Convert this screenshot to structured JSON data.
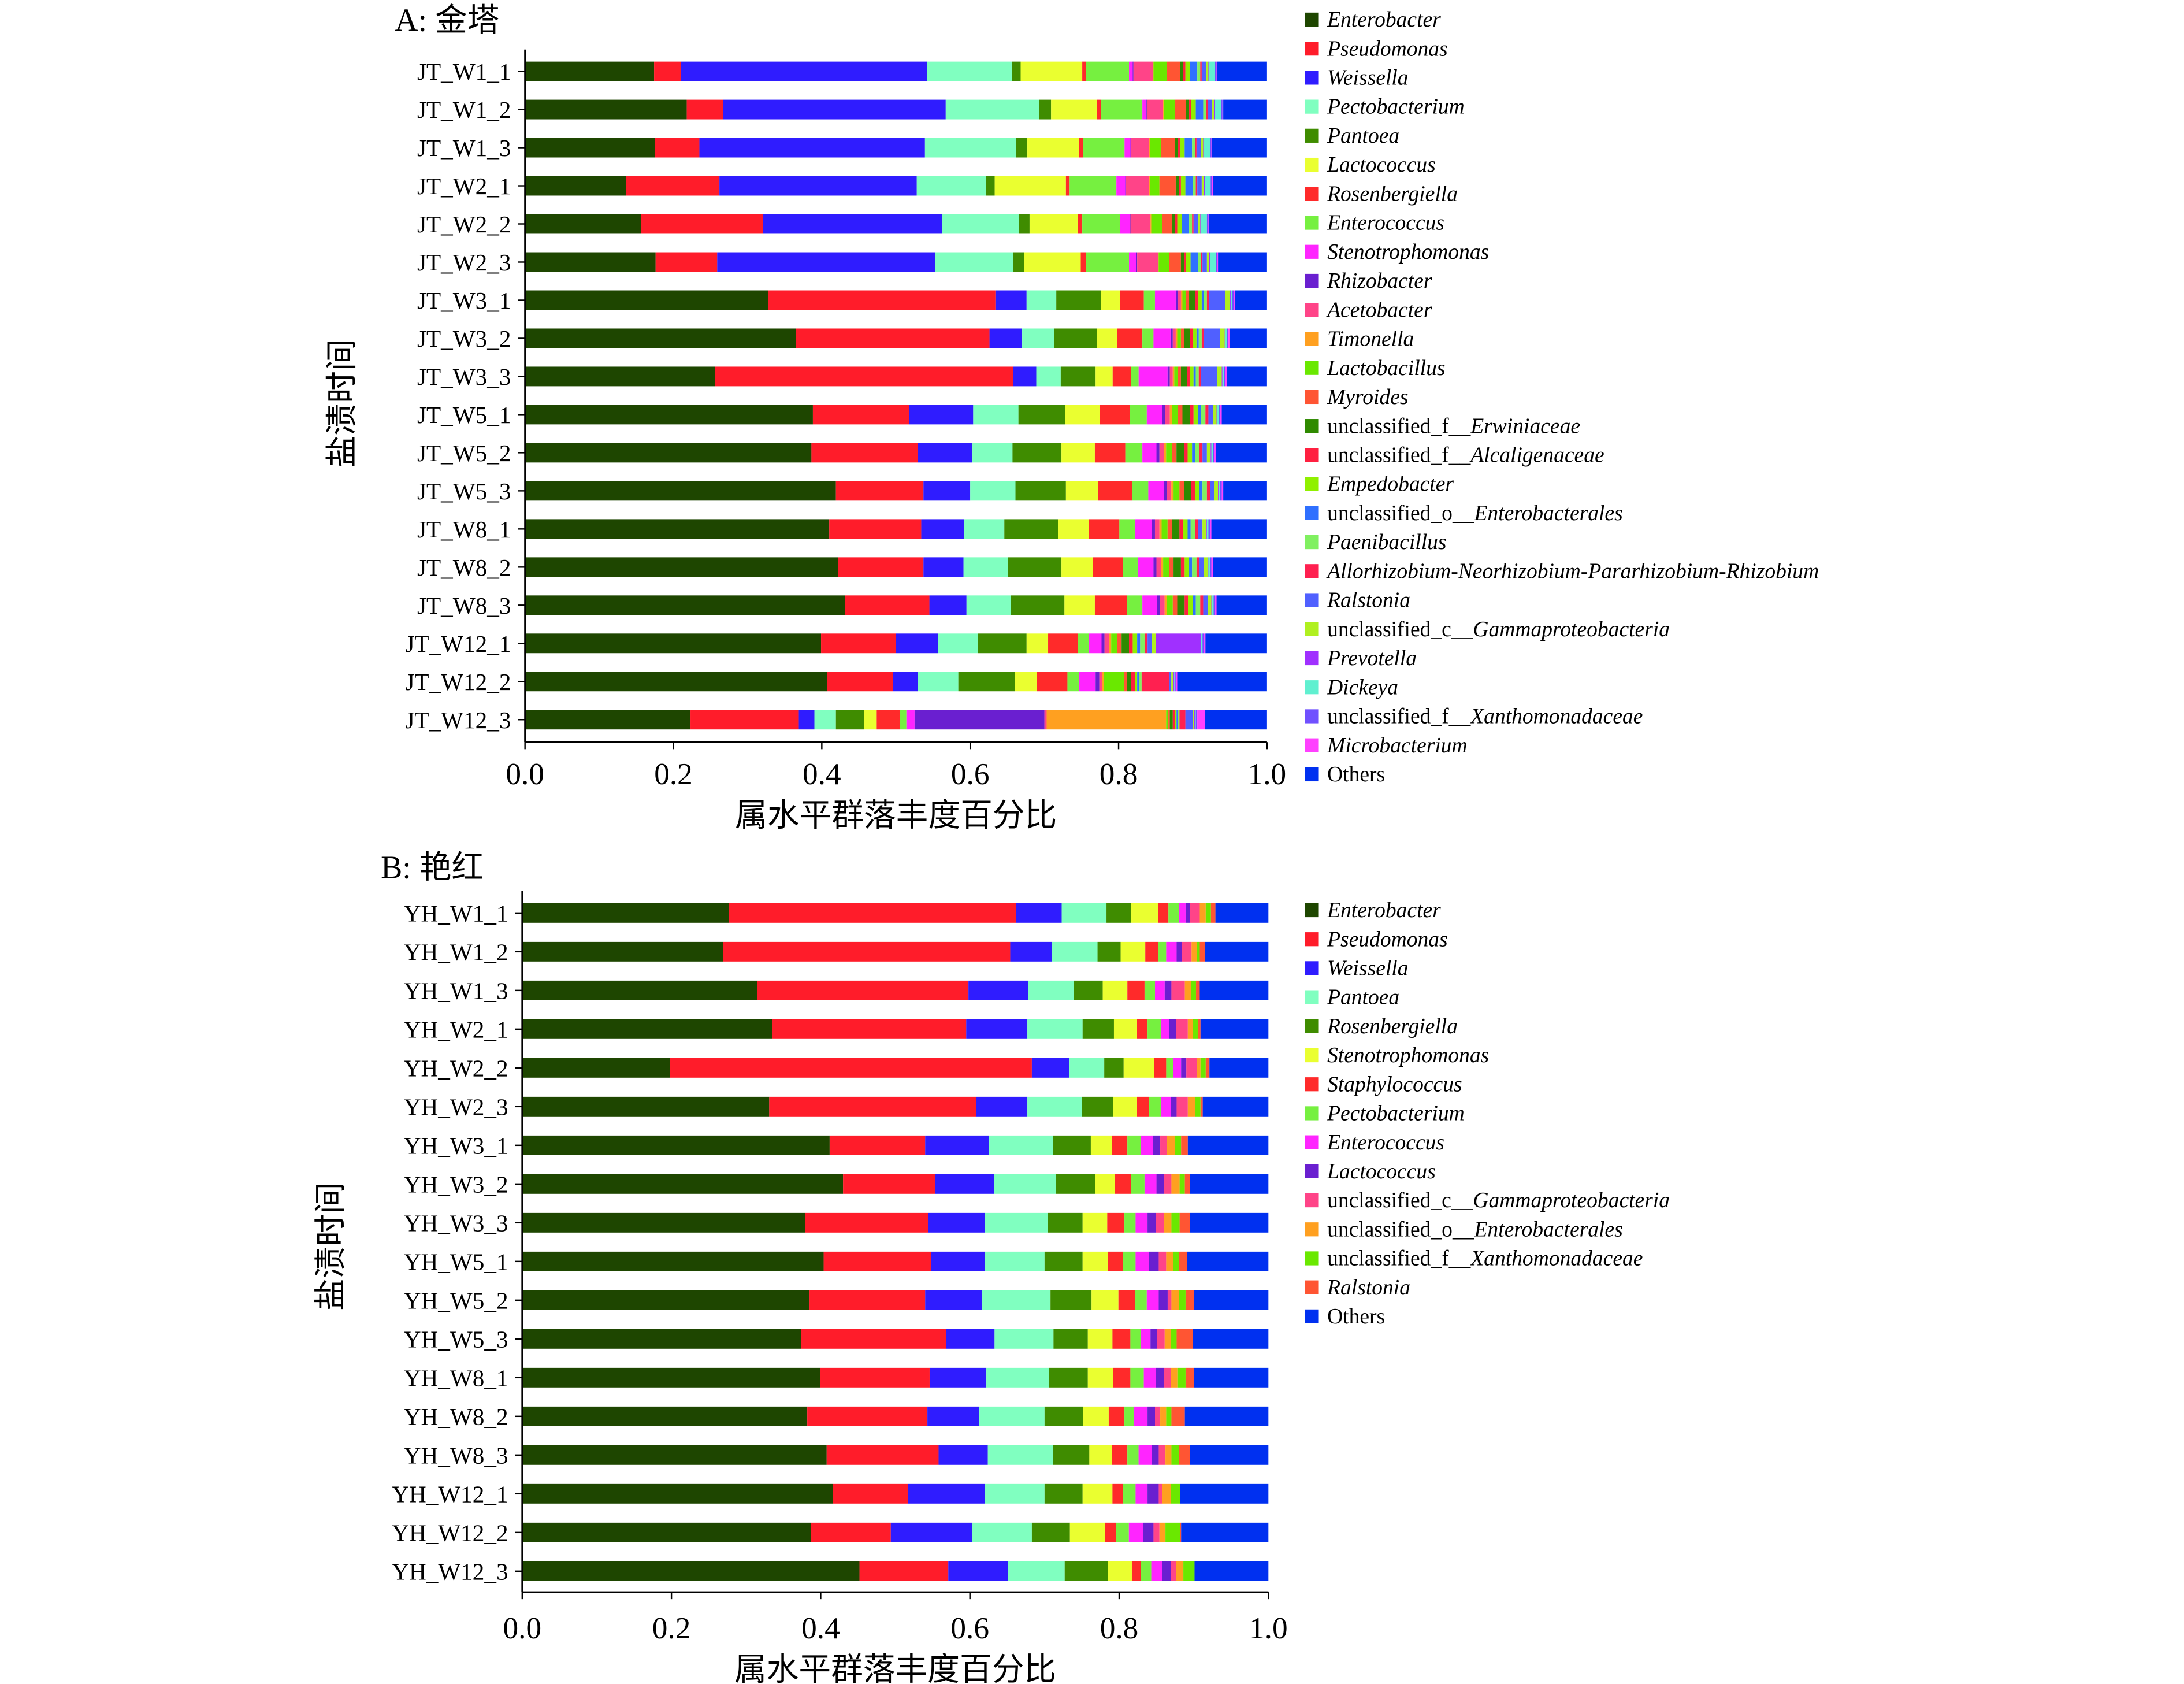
{
  "chart_data": [
    {
      "type": "bar",
      "orientation": "horizontal-stacked",
      "title": "A: 金塔",
      "xlabel": "属水平群落丰度百分比",
      "ylabel": "盐渍时间",
      "xlim": [
        0,
        1.0
      ],
      "xticks": [
        "0.0",
        "0.2",
        "0.4",
        "0.6",
        "0.8",
        "1.0"
      ],
      "legend_position": "right",
      "categories": [
        "JT_W1_1",
        "JT_W1_2",
        "JT_W1_3",
        "JT_W2_1",
        "JT_W2_2",
        "JT_W2_3",
        "JT_W3_1",
        "JT_W3_2",
        "JT_W3_3",
        "JT_W5_1",
        "JT_W5_2",
        "JT_W5_3",
        "JT_W8_1",
        "JT_W8_2",
        "JT_W8_3",
        "JT_W12_1",
        "JT_W12_2",
        "JT_W12_3"
      ],
      "series_names": [
        "Enterobacter",
        "Pseudomonas",
        "Weissella",
        "Pectobacterium",
        "Pantoea",
        "Lactococcus",
        "Rosenbergiella",
        "Enterococcus",
        "Stenotrophomonas",
        "Rhizobacter",
        "Acetobacter",
        "Timonella",
        "Lactobacillus",
        "Myroides",
        "unclassified_f__Erwiniaceae",
        "unclassified_f__Alcaligenaceae",
        "Empedobacter",
        "unclassified_o__Enterobacterales",
        "Paenibacillus",
        "Allorhizobium-Neorhizobium-Pararhizobium-Rhizobium",
        "Ralstonia",
        "unclassified_c__Gammaproteobacteria",
        "Prevotella",
        "Dickeya",
        "unclassified_f__Xanthomonadaceae",
        "Microbacterium",
        "Others"
      ],
      "colors": [
        "#1e4600",
        "#ff1c2a",
        "#2f1cff",
        "#80ffc0",
        "#3f8c00",
        "#eaff30",
        "#ff2a2a",
        "#76f040",
        "#ff25ff",
        "#6a1fd0",
        "#ff4488",
        "#ffa020",
        "#6ae800",
        "#ff5533",
        "#2f8a00",
        "#ff2040",
        "#90f000",
        "#2f70ff",
        "#80f060",
        "#ff2050",
        "#5060ff",
        "#b0f020",
        "#a030ff",
        "#60f0d0",
        "#7050ff",
        "#ff40ff",
        "#0030f0"
      ],
      "values": [
        [
          0.174,
          0.036,
          0.332,
          0.114,
          0.012,
          0.083,
          0.005,
          0.058,
          0.005,
          0.001,
          0.026,
          0.001,
          0.018,
          0.018,
          0.004,
          0.003,
          0.006,
          0.01,
          0.004,
          0.002,
          0.006,
          0.003,
          0.001,
          0.008,
          0.002,
          0.001,
          0.067
        ],
        [
          0.218,
          0.049,
          0.3,
          0.126,
          0.016,
          0.062,
          0.005,
          0.056,
          0.005,
          0.001,
          0.022,
          0.001,
          0.015,
          0.015,
          0.004,
          0.003,
          0.006,
          0.01,
          0.004,
          0.002,
          0.006,
          0.003,
          0.001,
          0.008,
          0.002,
          0.001,
          0.059
        ],
        [
          0.175,
          0.06,
          0.304,
          0.123,
          0.015,
          0.07,
          0.005,
          0.056,
          0.008,
          0.001,
          0.024,
          0.001,
          0.015,
          0.019,
          0.004,
          0.003,
          0.006,
          0.01,
          0.004,
          0.002,
          0.006,
          0.003,
          0.001,
          0.008,
          0.002,
          0.001,
          0.074
        ],
        [
          0.136,
          0.126,
          0.266,
          0.093,
          0.012,
          0.096,
          0.005,
          0.063,
          0.012,
          0.001,
          0.031,
          0.001,
          0.013,
          0.022,
          0.004,
          0.003,
          0.006,
          0.01,
          0.004,
          0.002,
          0.006,
          0.003,
          0.001,
          0.008,
          0.002,
          0.001,
          0.073
        ],
        [
          0.156,
          0.165,
          0.241,
          0.104,
          0.014,
          0.065,
          0.006,
          0.051,
          0.013,
          0.001,
          0.027,
          0.001,
          0.015,
          0.013,
          0.004,
          0.003,
          0.006,
          0.01,
          0.004,
          0.002,
          0.006,
          0.003,
          0.001,
          0.008,
          0.002,
          0.001,
          0.078
        ],
        [
          0.176,
          0.083,
          0.294,
          0.105,
          0.015,
          0.076,
          0.007,
          0.058,
          0.01,
          0.001,
          0.028,
          0.001,
          0.014,
          0.016,
          0.004,
          0.003,
          0.006,
          0.01,
          0.004,
          0.002,
          0.006,
          0.003,
          0.001,
          0.008,
          0.002,
          0.001,
          0.066
        ],
        [
          0.328,
          0.306,
          0.042,
          0.04,
          0.06,
          0.026,
          0.032,
          0.015,
          0.028,
          0.003,
          0.004,
          0.002,
          0.005,
          0.004,
          0.008,
          0.004,
          0.005,
          0.003,
          0.004,
          0.003,
          0.022,
          0.006,
          0.001,
          0.002,
          0.002,
          0.002,
          0.043
        ],
        [
          0.365,
          0.261,
          0.044,
          0.043,
          0.058,
          0.027,
          0.034,
          0.015,
          0.023,
          0.003,
          0.004,
          0.002,
          0.005,
          0.004,
          0.008,
          0.004,
          0.005,
          0.003,
          0.004,
          0.003,
          0.022,
          0.006,
          0.001,
          0.002,
          0.002,
          0.002,
          0.05
        ],
        [
          0.256,
          0.402,
          0.031,
          0.033,
          0.047,
          0.023,
          0.025,
          0.01,
          0.039,
          0.003,
          0.004,
          0.002,
          0.005,
          0.004,
          0.008,
          0.004,
          0.005,
          0.003,
          0.004,
          0.003,
          0.022,
          0.006,
          0.001,
          0.002,
          0.002,
          0.002,
          0.054
        ],
        [
          0.388,
          0.13,
          0.086,
          0.061,
          0.063,
          0.047,
          0.04,
          0.023,
          0.021,
          0.004,
          0.006,
          0.003,
          0.008,
          0.006,
          0.01,
          0.005,
          0.006,
          0.004,
          0.006,
          0.004,
          0.006,
          0.005,
          0.001,
          0.002,
          0.002,
          0.002,
          0.061
        ],
        [
          0.386,
          0.143,
          0.074,
          0.054,
          0.066,
          0.045,
          0.041,
          0.023,
          0.019,
          0.004,
          0.006,
          0.003,
          0.008,
          0.006,
          0.01,
          0.005,
          0.006,
          0.004,
          0.006,
          0.004,
          0.006,
          0.005,
          0.001,
          0.002,
          0.002,
          0.002,
          0.069
        ],
        [
          0.419,
          0.118,
          0.063,
          0.061,
          0.068,
          0.043,
          0.046,
          0.022,
          0.021,
          0.004,
          0.006,
          0.003,
          0.008,
          0.006,
          0.01,
          0.005,
          0.006,
          0.004,
          0.006,
          0.004,
          0.006,
          0.005,
          0.001,
          0.002,
          0.002,
          0.002,
          0.059
        ],
        [
          0.41,
          0.124,
          0.058,
          0.054,
          0.073,
          0.041,
          0.041,
          0.021,
          0.023,
          0.004,
          0.006,
          0.003,
          0.008,
          0.006,
          0.01,
          0.005,
          0.006,
          0.004,
          0.006,
          0.004,
          0.006,
          0.005,
          0.001,
          0.002,
          0.002,
          0.002,
          0.075
        ],
        [
          0.422,
          0.115,
          0.054,
          0.06,
          0.072,
          0.042,
          0.041,
          0.02,
          0.021,
          0.004,
          0.006,
          0.003,
          0.008,
          0.006,
          0.01,
          0.005,
          0.006,
          0.004,
          0.006,
          0.004,
          0.006,
          0.005,
          0.001,
          0.002,
          0.002,
          0.002,
          0.073
        ],
        [
          0.431,
          0.114,
          0.05,
          0.06,
          0.072,
          0.041,
          0.043,
          0.021,
          0.02,
          0.004,
          0.006,
          0.003,
          0.008,
          0.006,
          0.01,
          0.005,
          0.006,
          0.004,
          0.006,
          0.004,
          0.006,
          0.005,
          0.001,
          0.002,
          0.002,
          0.002,
          0.068
        ],
        [
          0.399,
          0.101,
          0.057,
          0.053,
          0.066,
          0.029,
          0.04,
          0.015,
          0.017,
          0.004,
          0.006,
          0.003,
          0.008,
          0.006,
          0.01,
          0.005,
          0.006,
          0.004,
          0.006,
          0.004,
          0.006,
          0.005,
          0.061,
          0.002,
          0.002,
          0.002,
          0.083
        ],
        [
          0.407,
          0.089,
          0.033,
          0.055,
          0.076,
          0.03,
          0.041,
          0.016,
          0.022,
          0.005,
          0.004,
          0.002,
          0.027,
          0.004,
          0.006,
          0.005,
          0.003,
          0.003,
          0.003,
          0.037,
          0.003,
          0.003,
          0.001,
          0.001,
          0.001,
          0.002,
          0.121
        ],
        [
          0.223,
          0.146,
          0.021,
          0.029,
          0.038,
          0.017,
          0.031,
          0.009,
          0.011,
          0.175,
          0.003,
          0.161,
          0.003,
          0.002,
          0.004,
          0.003,
          0.002,
          0.002,
          0.002,
          0.008,
          0.01,
          0.002,
          0.001,
          0.001,
          0.002,
          0.01,
          0.084
        ]
      ]
    },
    {
      "type": "bar",
      "orientation": "horizontal-stacked",
      "title": "B: 艳红",
      "xlabel": "属水平群落丰度百分比",
      "ylabel": "盐渍时间",
      "xlim": [
        0,
        1.0
      ],
      "xticks": [
        "0.0",
        "0.2",
        "0.4",
        "0.6",
        "0.8",
        "1.0"
      ],
      "legend_position": "right",
      "categories": [
        "YH_W1_1",
        "YH_W1_2",
        "YH_W1_3",
        "YH_W2_1",
        "YH_W2_2",
        "YH_W2_3",
        "YH_W3_1",
        "YH_W3_2",
        "YH_W3_3",
        "YH_W5_1",
        "YH_W5_2",
        "YH_W5_3",
        "YH_W8_1",
        "YH_W8_2",
        "YH_W8_3",
        "YH_W12_1",
        "YH_W12_2",
        "YH_W12_3"
      ],
      "series_names": [
        "Enterobacter",
        "Pseudomonas",
        "Weissella",
        "Pantoea",
        "Rosenbergiella",
        "Stenotrophomonas",
        "Staphylococcus",
        "Pectobacterium",
        "Enterococcus",
        "Lactococcus",
        "unclassified_c__Gammaproteobacteria",
        "unclassified_o__Enterobacterales",
        "unclassified_f__Xanthomonadaceae",
        "Ralstonia",
        "Others"
      ],
      "colors": [
        "#1e4600",
        "#ff1c2a",
        "#2f1cff",
        "#80ffc0",
        "#3f8c00",
        "#eaff30",
        "#ff2a2a",
        "#76f040",
        "#ff25ff",
        "#6a1fd0",
        "#ff4488",
        "#ffa020",
        "#6ae800",
        "#ff5533",
        "#0030f0"
      ],
      "values": [
        [
          0.277,
          0.385,
          0.061,
          0.06,
          0.033,
          0.036,
          0.014,
          0.014,
          0.009,
          0.006,
          0.013,
          0.008,
          0.007,
          0.006,
          0.071
        ],
        [
          0.269,
          0.385,
          0.056,
          0.061,
          0.031,
          0.033,
          0.017,
          0.011,
          0.014,
          0.007,
          0.013,
          0.007,
          0.004,
          0.007,
          0.085
        ],
        [
          0.315,
          0.283,
          0.08,
          0.061,
          0.039,
          0.033,
          0.023,
          0.014,
          0.013,
          0.009,
          0.018,
          0.008,
          0.007,
          0.005,
          0.092
        ],
        [
          0.335,
          0.26,
          0.082,
          0.074,
          0.042,
          0.031,
          0.014,
          0.018,
          0.011,
          0.009,
          0.016,
          0.007,
          0.007,
          0.003,
          0.091
        ],
        [
          0.198,
          0.485,
          0.05,
          0.047,
          0.026,
          0.041,
          0.016,
          0.009,
          0.011,
          0.007,
          0.014,
          0.005,
          0.007,
          0.005,
          0.079
        ],
        [
          0.331,
          0.277,
          0.069,
          0.073,
          0.042,
          0.032,
          0.016,
          0.016,
          0.013,
          0.008,
          0.015,
          0.01,
          0.007,
          0.003,
          0.088
        ],
        [
          0.412,
          0.128,
          0.085,
          0.086,
          0.051,
          0.028,
          0.021,
          0.018,
          0.016,
          0.01,
          0.009,
          0.011,
          0.008,
          0.009,
          0.108
        ],
        [
          0.43,
          0.123,
          0.079,
          0.083,
          0.053,
          0.026,
          0.022,
          0.018,
          0.016,
          0.01,
          0.01,
          0.011,
          0.007,
          0.007,
          0.105
        ],
        [
          0.379,
          0.165,
          0.076,
          0.084,
          0.047,
          0.033,
          0.023,
          0.015,
          0.016,
          0.011,
          0.011,
          0.01,
          0.011,
          0.014,
          0.105
        ],
        [
          0.404,
          0.144,
          0.072,
          0.08,
          0.051,
          0.034,
          0.02,
          0.017,
          0.018,
          0.013,
          0.01,
          0.009,
          0.008,
          0.011,
          0.109
        ],
        [
          0.385,
          0.155,
          0.076,
          0.092,
          0.055,
          0.036,
          0.022,
          0.016,
          0.016,
          0.012,
          0.005,
          0.01,
          0.009,
          0.011,
          0.1
        ],
        [
          0.374,
          0.194,
          0.065,
          0.079,
          0.046,
          0.033,
          0.024,
          0.014,
          0.013,
          0.009,
          0.01,
          0.008,
          0.008,
          0.022,
          0.101
        ],
        [
          0.399,
          0.147,
          0.076,
          0.084,
          0.052,
          0.034,
          0.023,
          0.018,
          0.016,
          0.011,
          0.009,
          0.009,
          0.011,
          0.011,
          0.1
        ],
        [
          0.382,
          0.161,
          0.069,
          0.088,
          0.052,
          0.034,
          0.021,
          0.013,
          0.018,
          0.01,
          0.007,
          0.008,
          0.007,
          0.018,
          0.112
        ],
        [
          0.408,
          0.15,
          0.066,
          0.087,
          0.049,
          0.03,
          0.021,
          0.015,
          0.018,
          0.009,
          0.009,
          0.008,
          0.01,
          0.015,
          0.105
        ],
        [
          0.416,
          0.101,
          0.103,
          0.08,
          0.051,
          0.04,
          0.014,
          0.017,
          0.016,
          0.015,
          0.005,
          0.011,
          0.013,
          0.0,
          0.118
        ],
        [
          0.387,
          0.107,
          0.109,
          0.08,
          0.051,
          0.047,
          0.015,
          0.017,
          0.019,
          0.014,
          0.008,
          0.008,
          0.02,
          0.001,
          0.117
        ],
        [
          0.452,
          0.119,
          0.08,
          0.076,
          0.058,
          0.032,
          0.012,
          0.014,
          0.015,
          0.011,
          0.007,
          0.01,
          0.015,
          0.0,
          0.099
        ]
      ]
    }
  ]
}
